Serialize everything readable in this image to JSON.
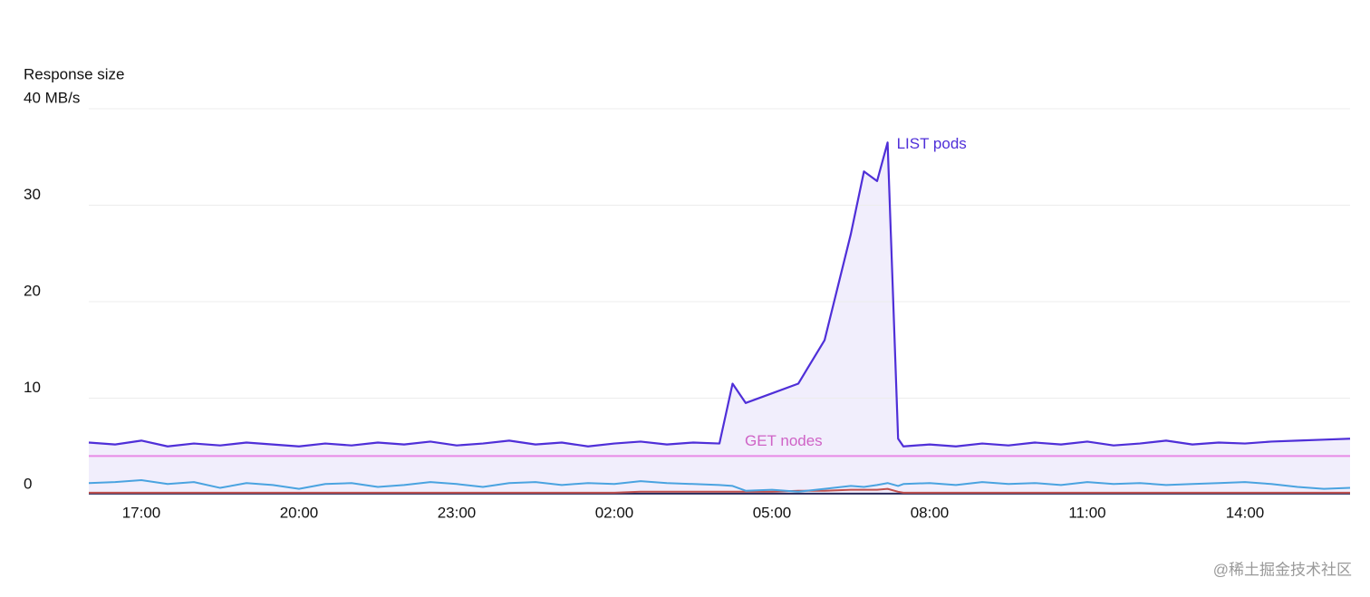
{
  "chart_data": {
    "type": "line",
    "y_axis_label": "Response size",
    "watermark": "@稀土掘金技术社区",
    "x": [
      16,
      16.5,
      17,
      17.5,
      18,
      18.5,
      19,
      19.5,
      20,
      20.5,
      21,
      21.5,
      22,
      22.5,
      23,
      23.5,
      24,
      24.5,
      25,
      25.5,
      26,
      26.5,
      27,
      27.5,
      28,
      28.25,
      28.5,
      29,
      29.5,
      30,
      30.5,
      30.75,
      31,
      31.2,
      31.4,
      31.5,
      32,
      32.5,
      33,
      33.5,
      34,
      34.5,
      35,
      35.5,
      36,
      36.5,
      37,
      37.5,
      38,
      38.5,
      39,
      39.5,
      40
    ],
    "xlim": [
      16,
      40
    ],
    "xticks": [
      {
        "value": 17,
        "label": "17:00"
      },
      {
        "value": 20,
        "label": "20:00"
      },
      {
        "value": 23,
        "label": "23:00"
      },
      {
        "value": 26,
        "label": "02:00"
      },
      {
        "value": 29,
        "label": "05:00"
      },
      {
        "value": 32,
        "label": "08:00"
      },
      {
        "value": 35,
        "label": "11:00"
      },
      {
        "value": 38,
        "label": "14:00"
      }
    ],
    "ylim": [
      0,
      40
    ],
    "yticks": [
      0,
      10,
      20,
      30,
      {
        "value": 40,
        "label": "40 MB/s"
      }
    ],
    "grid": true,
    "series": [
      {
        "name": "LIST pods",
        "color": "#4f2fd8",
        "fill": "#f1eefc",
        "values": [
          5.4,
          5.2,
          5.6,
          5.0,
          5.3,
          5.1,
          5.4,
          5.2,
          5.0,
          5.3,
          5.1,
          5.4,
          5.2,
          5.5,
          5.1,
          5.3,
          5.6,
          5.2,
          5.4,
          5.0,
          5.3,
          5.5,
          5.2,
          5.4,
          5.3,
          11.5,
          9.5,
          10.5,
          11.5,
          16,
          27,
          33.5,
          32.5,
          36.5,
          5.8,
          5.0,
          5.2,
          5.0,
          5.3,
          5.1,
          5.4,
          5.2,
          5.5,
          5.1,
          5.3,
          5.6,
          5.2,
          5.4,
          5.3,
          5.5,
          5.6,
          5.7,
          5.8
        ]
      },
      {
        "name": "GET nodes",
        "color": "#e88ae6",
        "label_color": "#cf63c6",
        "values": [
          4.0,
          4.0,
          4.0,
          4.0,
          4.0,
          4.0,
          4.0,
          4.0,
          4.0,
          4.0,
          4.0,
          4.0,
          4.0,
          4.0,
          4.0,
          4.0,
          4.0,
          4.0,
          4.0,
          4.0,
          4.0,
          4.0,
          4.0,
          4.0,
          4.0,
          4.0,
          4.0,
          4.0,
          4.0,
          4.0,
          4.0,
          4.0,
          4.0,
          4.0,
          4.0,
          4.0,
          4.0,
          4.0,
          4.0,
          4.0,
          4.0,
          4.0,
          4.0,
          4.0,
          4.0,
          4.0,
          4.0,
          4.0,
          4.0,
          4.0,
          4.0,
          4.0,
          4.0
        ]
      },
      {
        "color": "#4aa3e0",
        "values": [
          1.2,
          1.3,
          1.5,
          1.1,
          1.3,
          0.7,
          1.2,
          1.0,
          0.6,
          1.1,
          1.2,
          0.8,
          1.0,
          1.3,
          1.1,
          0.8,
          1.2,
          1.3,
          1.0,
          1.2,
          1.1,
          1.4,
          1.2,
          1.1,
          1.0,
          0.9,
          0.4,
          0.5,
          0.3,
          0.6,
          0.9,
          0.8,
          1.0,
          1.2,
          0.9,
          1.1,
          1.2,
          1.0,
          1.3,
          1.1,
          1.2,
          1.0,
          1.3,
          1.1,
          1.2,
          1.0,
          1.1,
          1.2,
          1.3,
          1.1,
          0.8,
          0.6,
          0.7
        ]
      },
      {
        "color": "#c0504d",
        "values": [
          0.2,
          0.2,
          0.2,
          0.2,
          0.2,
          0.2,
          0.2,
          0.2,
          0.2,
          0.2,
          0.2,
          0.2,
          0.2,
          0.2,
          0.2,
          0.2,
          0.2,
          0.2,
          0.2,
          0.2,
          0.2,
          0.3,
          0.3,
          0.3,
          0.3,
          0.3,
          0.3,
          0.3,
          0.4,
          0.4,
          0.5,
          0.5,
          0.5,
          0.6,
          0.3,
          0.2,
          0.2,
          0.2,
          0.2,
          0.2,
          0.2,
          0.2,
          0.2,
          0.2,
          0.2,
          0.2,
          0.2,
          0.2,
          0.2,
          0.2,
          0.2,
          0.2,
          0.2
        ]
      },
      {
        "color": "#2a2a5a",
        "values": [
          0.1,
          0.1,
          0.1,
          0.1,
          0.1,
          0.1,
          0.1,
          0.1,
          0.1,
          0.1,
          0.1,
          0.1,
          0.1,
          0.1,
          0.1,
          0.1,
          0.1,
          0.1,
          0.1,
          0.1,
          0.1,
          0.1,
          0.1,
          0.1,
          0.1,
          0.1,
          0.1,
          0.1,
          0.1,
          0.1,
          0.1,
          0.1,
          0.1,
          0.1,
          0.1,
          0.1,
          0.1,
          0.1,
          0.1,
          0.1,
          0.1,
          0.1,
          0.1,
          0.1,
          0.1,
          0.1,
          0.1,
          0.1,
          0.1,
          0.1,
          0.1,
          0.1,
          0.1
        ]
      }
    ]
  }
}
